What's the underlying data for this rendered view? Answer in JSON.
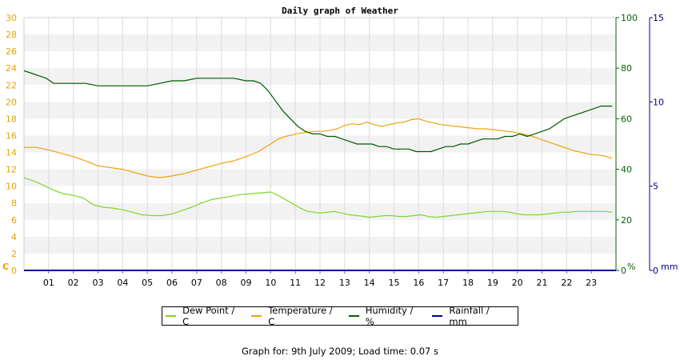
{
  "footer": "Graph for: 9th July 2009; Load time: 0.07 s",
  "chart_data": {
    "type": "line",
    "title": "Daily graph of Weather",
    "x_tick_labels": [
      "01",
      "02",
      "03",
      "04",
      "05",
      "06",
      "07",
      "08",
      "09",
      "10",
      "11",
      "12",
      "13",
      "14",
      "15",
      "16",
      "17",
      "18",
      "19",
      "20",
      "21",
      "22",
      "23"
    ],
    "xlim": [
      0,
      24
    ],
    "axes": {
      "left": {
        "unit_label": "C",
        "ylim": [
          0,
          30
        ],
        "ticks": [
          0,
          2,
          4,
          6,
          8,
          10,
          12,
          14,
          16,
          18,
          20,
          22,
          24,
          26,
          28,
          30
        ],
        "color": "#e8a000"
      },
      "right1": {
        "unit_label": "%",
        "ylim": [
          0,
          100
        ],
        "ticks": [
          0,
          20,
          40,
          60,
          80,
          100
        ],
        "color": "#006400"
      },
      "right2": {
        "unit_label": "mm",
        "ylim": [
          0,
          15
        ],
        "ticks": [
          0,
          5,
          10,
          15
        ],
        "color": "#000080"
      }
    },
    "grid": "horizontal-bands",
    "legend_position": "bottom-center",
    "series": [
      {
        "name": "Dew Point / C",
        "axis": "left",
        "color": "#7cd82a",
        "x": [
          0,
          0.5,
          1,
          1.3,
          1.6,
          2,
          2.4,
          2.8,
          3.2,
          3.6,
          4,
          4.4,
          4.8,
          5.2,
          5.6,
          6,
          6.4,
          6.8,
          7.2,
          7.6,
          8,
          8.4,
          8.8,
          9.2,
          9.6,
          10,
          10.3,
          10.6,
          10.9,
          11.2,
          11.5,
          11.8,
          12,
          12.3,
          12.6,
          12.9,
          13.2,
          13.5,
          13.8,
          14,
          14.3,
          14.6,
          14.9,
          15.2,
          15.5,
          15.8,
          16.1,
          16.4,
          16.7,
          17,
          17.3,
          17.6,
          17.9,
          18.2,
          18.5,
          18.8,
          19.1,
          19.4,
          19.7,
          20,
          20.3,
          20.6,
          20.9,
          21.2,
          21.5,
          21.8,
          22.1,
          22.4,
          22.7,
          23,
          23.3,
          23.6,
          23.85
        ],
        "values": [
          11,
          10.5,
          9.8,
          9.4,
          9.1,
          8.9,
          8.6,
          7.8,
          7.5,
          7.4,
          7.2,
          6.9,
          6.6,
          6.5,
          6.5,
          6.7,
          7.1,
          7.5,
          8.0,
          8.4,
          8.6,
          8.8,
          9.0,
          9.1,
          9.2,
          9.3,
          8.9,
          8.4,
          7.9,
          7.4,
          7.0,
          6.9,
          6.8,
          6.9,
          7.0,
          6.8,
          6.6,
          6.5,
          6.4,
          6.3,
          6.4,
          6.5,
          6.5,
          6.4,
          6.4,
          6.5,
          6.6,
          6.4,
          6.3,
          6.4,
          6.5,
          6.6,
          6.7,
          6.8,
          6.9,
          7.0,
          7.0,
          7.0,
          6.9,
          6.7,
          6.6,
          6.6,
          6.6,
          6.7,
          6.8,
          6.9,
          6.9,
          7.0,
          7.0,
          7.0,
          7.0,
          7.0,
          6.9
        ]
      },
      {
        "name": "Temperature / C",
        "axis": "left",
        "color": "#f0a010",
        "x": [
          0,
          0.5,
          1,
          1.5,
          2,
          2.5,
          3,
          3.5,
          4,
          4.5,
          5,
          5.5,
          6,
          6.5,
          7,
          7.5,
          8,
          8.5,
          9,
          9.5,
          10,
          10.3,
          10.6,
          10.9,
          11.2,
          11.5,
          11.8,
          12.1,
          12.4,
          12.7,
          13,
          13.3,
          13.6,
          13.9,
          14.2,
          14.5,
          14.8,
          15.1,
          15.4,
          15.7,
          16,
          16.3,
          16.6,
          16.9,
          17.2,
          17.5,
          17.8,
          18.1,
          18.4,
          18.7,
          19,
          19.3,
          19.6,
          19.9,
          20.2,
          20.5,
          20.8,
          21.1,
          21.4,
          21.7,
          22,
          22.3,
          22.6,
          22.9,
          23.2,
          23.5,
          23.85
        ],
        "values": [
          14.6,
          14.6,
          14.3,
          13.9,
          13.5,
          13.0,
          12.4,
          12.2,
          12.0,
          11.6,
          11.2,
          11.0,
          11.2,
          11.5,
          11.9,
          12.3,
          12.7,
          13.0,
          13.5,
          14.1,
          15.0,
          15.6,
          15.9,
          16.1,
          16.3,
          16.4,
          16.5,
          16.5,
          16.6,
          16.8,
          17.2,
          17.4,
          17.3,
          17.6,
          17.3,
          17.1,
          17.3,
          17.5,
          17.6,
          17.9,
          18.0,
          17.7,
          17.5,
          17.3,
          17.2,
          17.1,
          17.0,
          16.9,
          16.8,
          16.8,
          16.7,
          16.6,
          16.5,
          16.4,
          16.2,
          16.0,
          15.7,
          15.4,
          15.1,
          14.8,
          14.5,
          14.2,
          14.0,
          13.8,
          13.7,
          13.6,
          13.3
        ]
      },
      {
        "name": "Humidity / %",
        "axis": "right1",
        "color": "#005a00",
        "x": [
          0,
          0.3,
          0.6,
          0.9,
          1.2,
          1.5,
          2,
          2.5,
          3,
          3.5,
          4,
          4.5,
          5,
          5.5,
          6,
          6.5,
          7,
          7.5,
          8,
          8.5,
          9,
          9.3,
          9.6,
          9.9,
          10.2,
          10.5,
          10.8,
          11.1,
          11.4,
          11.7,
          12,
          12.3,
          12.6,
          12.9,
          13.2,
          13.5,
          13.8,
          14.1,
          14.4,
          14.7,
          15,
          15.3,
          15.6,
          15.9,
          16.2,
          16.5,
          16.8,
          17.1,
          17.4,
          17.7,
          18,
          18.3,
          18.6,
          18.9,
          19.2,
          19.5,
          19.8,
          20.1,
          20.4,
          20.7,
          21,
          21.3,
          21.6,
          21.9,
          22.2,
          22.5,
          22.8,
          23.1,
          23.4,
          23.85
        ],
        "values": [
          79,
          78,
          77,
          76,
          74,
          74,
          74,
          74,
          73,
          73,
          73,
          73,
          73,
          74,
          75,
          75,
          76,
          76,
          76,
          76,
          75,
          75,
          74,
          71,
          67,
          63,
          60,
          57,
          55,
          54,
          54,
          53,
          53,
          52,
          51,
          50,
          50,
          50,
          49,
          49,
          48,
          48,
          48,
          47,
          47,
          47,
          48,
          49,
          49,
          50,
          50,
          51,
          52,
          52,
          52,
          53,
          53,
          54,
          53,
          54,
          55,
          56,
          58,
          60,
          61,
          62,
          63,
          64,
          65,
          65
        ]
      },
      {
        "name": "Rainfall / mm",
        "axis": "right2",
        "color": "#0000a0",
        "x": [
          0,
          24
        ],
        "values": [
          0,
          0
        ]
      }
    ]
  }
}
